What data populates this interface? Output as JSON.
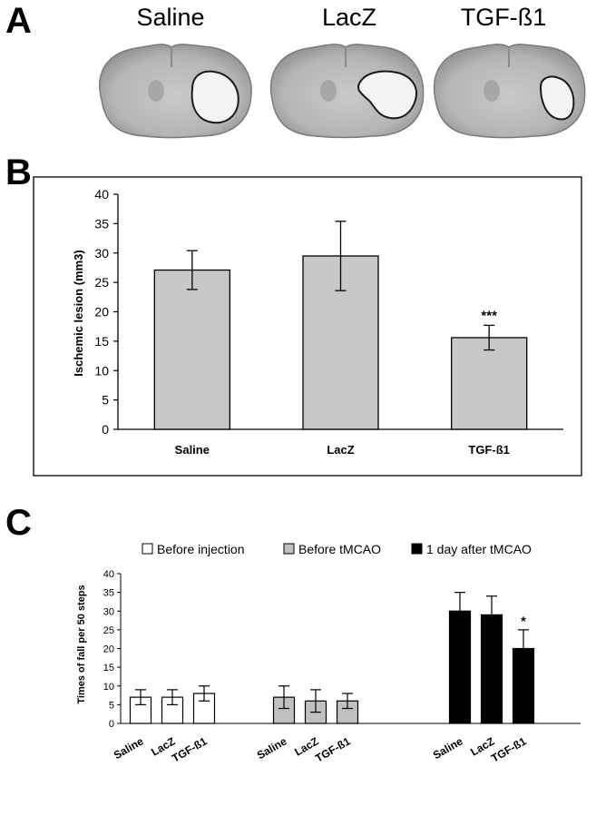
{
  "panels": {
    "a": {
      "letter": "A",
      "groups": [
        "Saline",
        "LacZ",
        "TGF-ß1"
      ]
    },
    "b": {
      "letter": "B"
    },
    "c": {
      "letter": "C"
    }
  },
  "chart_data": [
    {
      "type": "bar",
      "panel": "B",
      "title": "",
      "xlabel": "",
      "ylabel": "Ischemic lesion (mm3)",
      "ylim": [
        0,
        40
      ],
      "yticks": [
        0,
        5,
        10,
        15,
        20,
        25,
        30,
        35,
        40
      ],
      "grid": false,
      "categories": [
        "Saline",
        "LacZ",
        "TGF-ß1"
      ],
      "values": [
        27.1,
        29.5,
        15.6
      ],
      "errors": [
        3.3,
        5.9,
        2.1
      ],
      "annotations": [
        "",
        "",
        "***"
      ],
      "bar_color": "#c8c8c8"
    },
    {
      "type": "bar",
      "panel": "C",
      "title": "",
      "xlabel": "",
      "ylabel": "Times of fall per 50 steps",
      "ylim": [
        0,
        40
      ],
      "yticks": [
        0,
        5,
        10,
        15,
        20,
        25,
        30,
        35,
        40
      ],
      "grid": false,
      "legend_position": "top",
      "categories": [
        "Saline",
        "LacZ",
        "TGF-ß1"
      ],
      "series": [
        {
          "name": "Before injection",
          "color": "#ffffff",
          "values": [
            7,
            7,
            8
          ],
          "errors": [
            2,
            2,
            2
          ],
          "annotations": [
            "",
            "",
            ""
          ]
        },
        {
          "name": "Before tMCAO",
          "color": "#c0c0c0",
          "values": [
            7,
            6,
            6
          ],
          "errors": [
            3,
            3,
            2
          ],
          "annotations": [
            "",
            "",
            ""
          ]
        },
        {
          "name": "1 day after tMCAO",
          "color": "#000000",
          "values": [
            30,
            29,
            20
          ],
          "errors": [
            5,
            5,
            5
          ],
          "annotations": [
            "",
            "",
            "*"
          ]
        }
      ]
    }
  ]
}
